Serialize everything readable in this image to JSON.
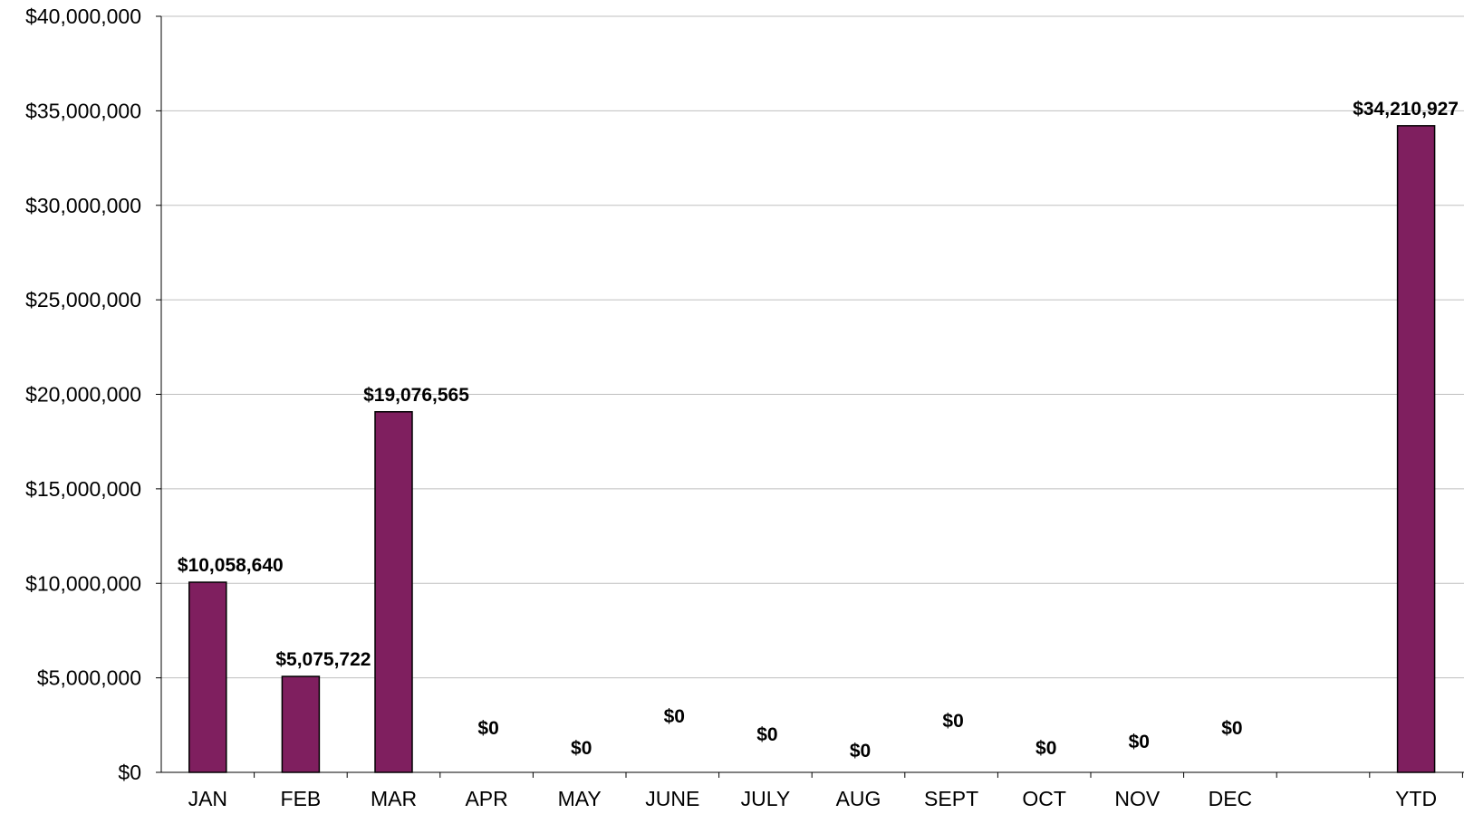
{
  "chart_data": {
    "type": "bar",
    "title": "",
    "xlabel": "",
    "ylabel": "",
    "categories": [
      "JAN",
      "FEB",
      "MAR",
      "APR",
      "MAY",
      "JUNE",
      "JULY",
      "AUG",
      "SEPT",
      "OCT",
      "NOV",
      "DEC",
      "",
      "YTD"
    ],
    "values": [
      10058640,
      5075722,
      19076565,
      0,
      0,
      0,
      0,
      0,
      0,
      0,
      0,
      0,
      null,
      34210927
    ],
    "data_labels": [
      "$10,058,640",
      "$5,075,722",
      "$19,076,565",
      "$0",
      "$0",
      "$0",
      "$0",
      "$0",
      "$0",
      "$0",
      "$0",
      "$0",
      "",
      "$34,210,927"
    ],
    "ylim": [
      0,
      40000000
    ],
    "yticks": [
      0,
      5000000,
      10000000,
      15000000,
      20000000,
      25000000,
      30000000,
      35000000,
      40000000
    ],
    "ytick_labels": [
      "$0",
      "$5,000,000",
      "$10,000,000",
      "$15,000,000",
      "$20,000,000",
      "$25,000,000",
      "$30,000,000",
      "$35,000,000",
      "$40,000,000"
    ],
    "grid": true,
    "legend": "none",
    "colors": {
      "bar_fill": "#7f1f5f",
      "bar_stroke": "#000000",
      "gridline": "#bfbfbf"
    }
  }
}
